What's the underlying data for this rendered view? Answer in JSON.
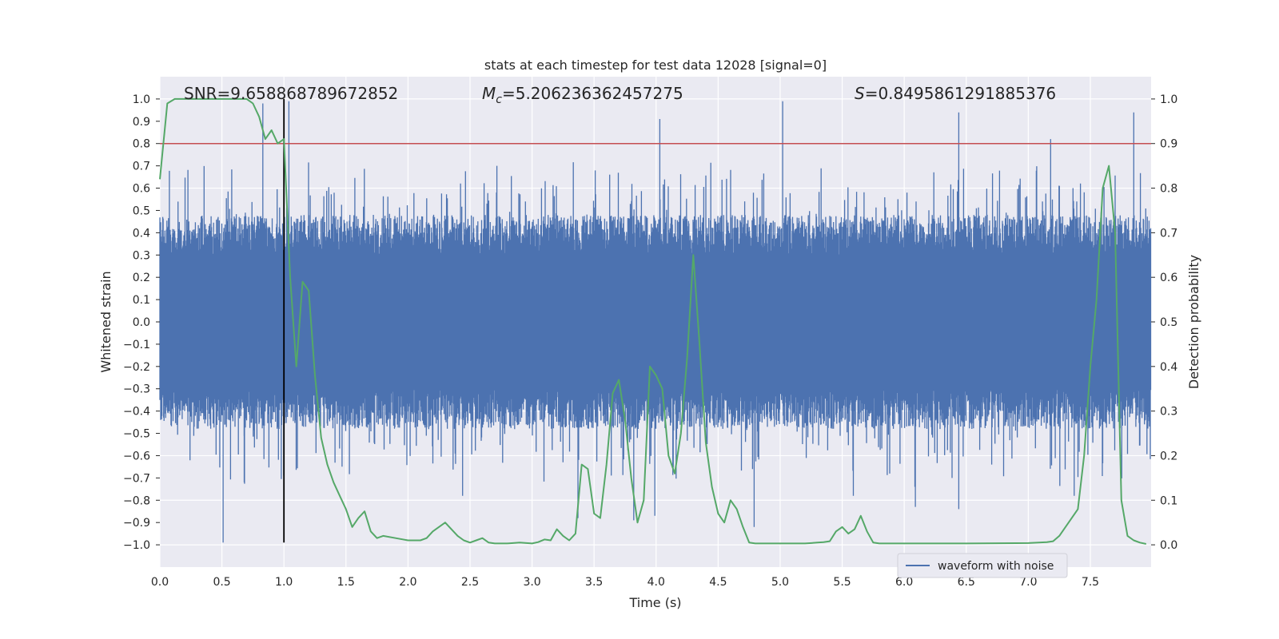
{
  "chart_data": {
    "type": "line",
    "title": "stats at each timestep for test data 12028 [signal=0]",
    "xlabel": "Time (s)",
    "ylabel_left": "Whitened strain",
    "ylabel_right": "Detection probability",
    "xlim": [
      0,
      7.99
    ],
    "ylim_left": [
      -1.1,
      1.1
    ],
    "ylim_right": [
      -0.05,
      1.05
    ],
    "x_ticks": [
      "0.0",
      "0.5",
      "1.0",
      "1.5",
      "2.0",
      "2.5",
      "3.0",
      "3.5",
      "4.0",
      "4.5",
      "5.0",
      "5.5",
      "6.0",
      "6.5",
      "7.0",
      "7.5"
    ],
    "y_left_ticks": [
      "1.0",
      "0.9",
      "0.8",
      "0.7",
      "0.6",
      "0.5",
      "0.4",
      "0.3",
      "0.2",
      "0.1",
      "0.0",
      "−0.1",
      "−0.2",
      "−0.3",
      "−0.4",
      "−0.5",
      "−0.6",
      "−0.7",
      "−0.8",
      "−0.9",
      "−1.0"
    ],
    "y_right_ticks": [
      "1.0",
      "0.9",
      "0.8",
      "0.7",
      "0.6",
      "0.5",
      "0.4",
      "0.3",
      "0.2",
      "0.1",
      "0.0"
    ],
    "grid": true,
    "legend_position": "lower-right",
    "annotations": {
      "snr": "SNR=9.658868789672852",
      "mc_symbol": "M",
      "mc_sub": "c",
      "mc_value": "=5.206236362457275",
      "s_symbol": "S",
      "s_value": "=0.8495861291885376"
    },
    "threshold_line": {
      "y": 0.8,
      "axis": "left",
      "color": "#c44e52"
    },
    "marker_line": {
      "x": 1.0,
      "y_from": -0.99,
      "y_to": 1.0,
      "color": "#000000"
    },
    "series": [
      {
        "name": "waveform with noise",
        "axis": "left",
        "color": "#4c72b0",
        "description_only": "dense whitened strain noise; core band roughly -0.4..0.4 with spikes",
        "band": [
          -0.4,
          0.4
        ],
        "spikes": [
          [
            0.83,
            0.98
          ],
          [
            0.51,
            -0.99
          ],
          [
            1.04,
            0.99
          ],
          [
            4.03,
            0.91
          ],
          [
            5.02,
            0.99
          ],
          [
            6.44,
            0.94
          ],
          [
            7.85,
            0.94
          ],
          [
            7.18,
            0.82
          ],
          [
            4.79,
            -0.92
          ],
          [
            3.99,
            -0.87
          ],
          [
            5.59,
            -0.78
          ],
          [
            6.09,
            -0.83
          ],
          [
            6.44,
            -0.84
          ],
          [
            7.37,
            -0.78
          ],
          [
            3.37,
            -0.88
          ],
          [
            3.82,
            -0.89
          ],
          [
            2.44,
            -0.78
          ],
          [
            0.68,
            -0.72
          ],
          [
            0.96,
            -0.48
          ]
        ]
      },
      {
        "name": "",
        "axis": "right",
        "color": "#55a868",
        "x": [
          0.0,
          0.06,
          0.12,
          0.2,
          0.3,
          0.4,
          0.5,
          0.6,
          0.7,
          0.75,
          0.8,
          0.85,
          0.9,
          0.95,
          1.0,
          1.05,
          1.1,
          1.15,
          1.2,
          1.25,
          1.3,
          1.35,
          1.4,
          1.45,
          1.5,
          1.55,
          1.6,
          1.65,
          1.7,
          1.75,
          1.8,
          1.9,
          2.0,
          2.1,
          2.15,
          2.2,
          2.3,
          2.35,
          2.4,
          2.45,
          2.5,
          2.55,
          2.6,
          2.65,
          2.7,
          2.8,
          2.9,
          3.0,
          3.05,
          3.1,
          3.15,
          3.2,
          3.25,
          3.3,
          3.35,
          3.4,
          3.45,
          3.5,
          3.55,
          3.6,
          3.65,
          3.7,
          3.75,
          3.8,
          3.85,
          3.9,
          3.95,
          4.0,
          4.05,
          4.1,
          4.15,
          4.2,
          4.25,
          4.3,
          4.35,
          4.4,
          4.45,
          4.5,
          4.55,
          4.6,
          4.65,
          4.7,
          4.75,
          4.8,
          4.9,
          5.0,
          5.1,
          5.2,
          5.3,
          5.35,
          5.4,
          5.45,
          5.5,
          5.55,
          5.6,
          5.65,
          5.7,
          5.75,
          5.8,
          5.9,
          6.0,
          6.5,
          7.0,
          7.15,
          7.2,
          7.25,
          7.3,
          7.35,
          7.4,
          7.45,
          7.5,
          7.55,
          7.6,
          7.65,
          7.7,
          7.75,
          7.8,
          7.85,
          7.9,
          7.95
        ],
        "y": [
          0.82,
          0.99,
          1.0,
          1.0,
          1.0,
          1.0,
          1.0,
          1.0,
          1.0,
          0.99,
          0.96,
          0.91,
          0.93,
          0.9,
          0.91,
          0.6,
          0.4,
          0.59,
          0.57,
          0.38,
          0.24,
          0.18,
          0.14,
          0.11,
          0.08,
          0.04,
          0.06,
          0.075,
          0.03,
          0.015,
          0.02,
          0.015,
          0.01,
          0.01,
          0.015,
          0.03,
          0.05,
          0.035,
          0.02,
          0.01,
          0.005,
          0.01,
          0.015,
          0.005,
          0.003,
          0.003,
          0.005,
          0.003,
          0.006,
          0.012,
          0.01,
          0.035,
          0.02,
          0.01,
          0.025,
          0.18,
          0.17,
          0.07,
          0.06,
          0.18,
          0.34,
          0.37,
          0.28,
          0.15,
          0.05,
          0.1,
          0.4,
          0.38,
          0.35,
          0.2,
          0.16,
          0.25,
          0.42,
          0.65,
          0.45,
          0.23,
          0.13,
          0.07,
          0.05,
          0.1,
          0.08,
          0.04,
          0.005,
          0.003,
          0.003,
          0.003,
          0.003,
          0.003,
          0.005,
          0.006,
          0.008,
          0.03,
          0.04,
          0.025,
          0.035,
          0.065,
          0.03,
          0.005,
          0.003,
          0.003,
          0.003,
          0.003,
          0.004,
          0.006,
          0.008,
          0.02,
          0.04,
          0.06,
          0.08,
          0.2,
          0.4,
          0.55,
          0.8,
          0.85,
          0.7,
          0.1,
          0.02,
          0.01,
          0.005,
          0.002
        ]
      }
    ]
  }
}
